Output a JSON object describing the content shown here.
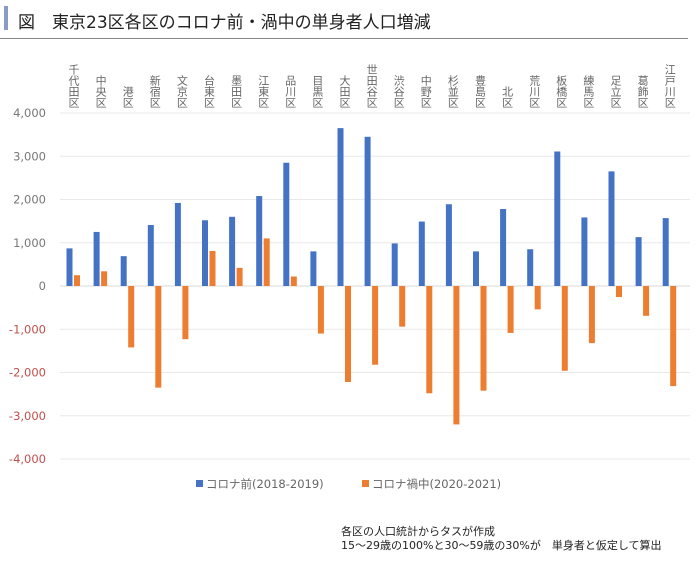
{
  "title": "図　東京23区各区のコロナ前・渦中の単身者人口増減",
  "note": [
    "各区の人口統計からタスが作成",
    "15～29歳の100%と30～59歳の30%が　単身者と仮定して算出"
  ],
  "colors": {
    "series1": "#4472c4",
    "series2": "#ed7d31",
    "negative_tick": "#c0504d",
    "positive_tick": "#777777",
    "accent": "#8a9bc8"
  },
  "chart_data": {
    "type": "bar",
    "title": "図　東京23区各区のコロナ前・渦中の単身者人口増減",
    "categories": [
      "千代田区",
      "中央区",
      "港区",
      "新宿区",
      "文京区",
      "台東区",
      "墨田区",
      "江東区",
      "品川区",
      "目黒区",
      "大田区",
      "世田谷区",
      "渋谷区",
      "中野区",
      "杉並区",
      "豊島区",
      "北区",
      "荒川区",
      "板橋区",
      "練馬区",
      "足立区",
      "葛飾区",
      "江戸川区"
    ],
    "series": [
      {
        "name": "コロナ前(2018-2019)",
        "values": [
          870,
          1250,
          690,
          1410,
          1920,
          1520,
          1600,
          2080,
          2850,
          800,
          3650,
          3450,
          985,
          1490,
          1890,
          800,
          1780,
          850,
          3110,
          1585,
          2650,
          1130,
          1570
        ]
      },
      {
        "name": "コロナ禍中(2020-2021)",
        "values": [
          250,
          340,
          -1420,
          -2350,
          -1230,
          810,
          420,
          1100,
          220,
          -1100,
          -2220,
          -1820,
          -940,
          -2480,
          -3200,
          -2420,
          -1085,
          -540,
          -1960,
          -1320,
          -255,
          -690,
          -2315
        ]
      }
    ],
    "ylim": [
      -4000,
      4000
    ],
    "yticks": [
      4000,
      3000,
      2000,
      1000,
      0,
      -1000,
      -2000,
      -3000,
      -4000
    ],
    "ytick_labels": [
      "4,000",
      "3,000",
      "2,000",
      "1,000",
      "0",
      "-1,000",
      "-2,000",
      "-3,000",
      "-4,000"
    ],
    "category_axis_position": "top",
    "grid": true,
    "legend": "bottom"
  }
}
